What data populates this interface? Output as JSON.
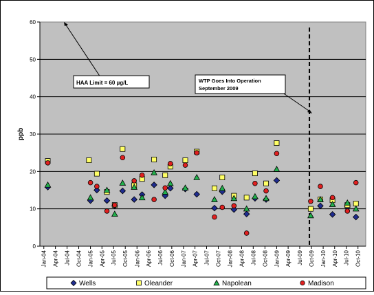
{
  "chart_data": {
    "type": "scatter",
    "ylabel": "ppb",
    "ylim": [
      0,
      60
    ],
    "yticks": [
      0,
      10,
      20,
      30,
      40,
      50,
      60
    ],
    "grid": true,
    "legend_position": "bottom",
    "x_tick_labels": [
      "Jan-04",
      "Apr-04",
      "Jul-04",
      "Oct-04",
      "Jan-05",
      "Apr-05",
      "Jul-05",
      "Oct-05",
      "Jan-06",
      "Apr-06",
      "Jul-06",
      "Oct-06",
      "Jan-07",
      "Apr-07",
      "Jul-07",
      "Oct-07",
      "Jan-08",
      "Apr-08",
      "Jul-08",
      "Oct-08",
      "Jan-09",
      "Apr-09",
      "Jul-09",
      "Oct-09",
      "Jan-10",
      "Apr-10",
      "Jul-10",
      "Oct-10"
    ],
    "annotations": {
      "haa_limit": "HAA Limit = 60 µg/L",
      "wtp_line1": "WTP Goes Into Operation",
      "wtp_line2": "September 2009"
    },
    "wtp_date": "2009-09-15",
    "series": [
      {
        "name": "Wells",
        "marker": "diamond",
        "color": "#1f2c8f",
        "points": [
          [
            "2004-02-01",
            15.8
          ],
          [
            "2005-01-01",
            12.2
          ],
          [
            "2005-02-20",
            15.0
          ],
          [
            "2005-05-10",
            12.2
          ],
          [
            "2005-07-10",
            10.8
          ],
          [
            "2005-09-10",
            14.8
          ],
          [
            "2005-12-10",
            12.5
          ],
          [
            "2006-02-10",
            13.8
          ],
          [
            "2006-05-15",
            16.4
          ],
          [
            "2006-08-10",
            13.5
          ],
          [
            "2006-09-20",
            15.5
          ],
          [
            "2007-01-15",
            15.3
          ],
          [
            "2007-04-15",
            13.9
          ],
          [
            "2007-09-01",
            10.2
          ],
          [
            "2007-11-01",
            14.6
          ],
          [
            "2008-02-01",
            9.8
          ],
          [
            "2008-05-10",
            8.6
          ],
          [
            "2008-07-15",
            12.8
          ],
          [
            "2008-10-10",
            12.5
          ],
          [
            "2009-01-01",
            17.6
          ],
          [
            "2009-12-10",
            10.8
          ],
          [
            "2010-03-15",
            8.5
          ],
          [
            "2010-07-10",
            10.5
          ],
          [
            "2010-09-15",
            7.8
          ]
        ]
      },
      {
        "name": "Oleander",
        "marker": "square",
        "color": "#ffff66",
        "points": [
          [
            "2004-02-01",
            22.8
          ],
          [
            "2004-12-20",
            23.0
          ],
          [
            "2005-02-20",
            19.4
          ],
          [
            "2005-05-10",
            14.5
          ],
          [
            "2005-07-10",
            11.0
          ],
          [
            "2005-09-10",
            26.0
          ],
          [
            "2005-12-10",
            16.3
          ],
          [
            "2006-02-10",
            18.0
          ],
          [
            "2006-05-15",
            23.2
          ],
          [
            "2006-08-10",
            19.0
          ],
          [
            "2006-09-20",
            21.3
          ],
          [
            "2007-01-15",
            23.0
          ],
          [
            "2007-04-15",
            25.3
          ],
          [
            "2007-09-01",
            15.5
          ],
          [
            "2007-11-01",
            18.4
          ],
          [
            "2008-02-01",
            13.5
          ],
          [
            "2008-05-10",
            13.0
          ],
          [
            "2008-07-15",
            19.5
          ],
          [
            "2008-10-10",
            16.8
          ],
          [
            "2009-01-01",
            27.6
          ],
          [
            "2009-09-25",
            10.0
          ],
          [
            "2009-12-10",
            12.5
          ],
          [
            "2010-03-15",
            12.3
          ],
          [
            "2010-07-10",
            11.0
          ],
          [
            "2010-09-15",
            11.4
          ]
        ]
      },
      {
        "name": "Napolean",
        "marker": "triangle",
        "color": "#22b14c",
        "points": [
          [
            "2004-02-01",
            16.4
          ],
          [
            "2005-01-01",
            13.0
          ],
          [
            "2005-05-10",
            15.0
          ],
          [
            "2005-07-10",
            8.6
          ],
          [
            "2005-09-10",
            16.9
          ],
          [
            "2005-12-10",
            15.8
          ],
          [
            "2006-02-10",
            13.0
          ],
          [
            "2006-05-15",
            19.7
          ],
          [
            "2006-08-10",
            14.5
          ],
          [
            "2006-09-20",
            16.8
          ],
          [
            "2007-01-15",
            15.6
          ],
          [
            "2007-04-15",
            18.4
          ],
          [
            "2007-09-01",
            12.5
          ],
          [
            "2007-11-01",
            15.5
          ],
          [
            "2008-02-01",
            12.8
          ],
          [
            "2008-05-10",
            10.0
          ],
          [
            "2008-07-15",
            13.3
          ],
          [
            "2008-10-10",
            12.8
          ],
          [
            "2009-01-01",
            20.6
          ],
          [
            "2009-09-25",
            8.2
          ],
          [
            "2009-12-10",
            12.5
          ],
          [
            "2010-03-15",
            11.2
          ],
          [
            "2010-07-10",
            11.6
          ],
          [
            "2010-09-15",
            10.0
          ]
        ]
      },
      {
        "name": "Madison",
        "marker": "circle",
        "color": "#e02020",
        "points": [
          [
            "2004-02-01",
            22.3
          ],
          [
            "2005-01-01",
            17.0
          ],
          [
            "2005-02-20",
            16.0
          ],
          [
            "2005-05-10",
            9.4
          ],
          [
            "2005-07-10",
            11.0
          ],
          [
            "2005-09-10",
            23.7
          ],
          [
            "2005-12-10",
            17.5
          ],
          [
            "2006-02-10",
            19.0
          ],
          [
            "2006-05-15",
            12.5
          ],
          [
            "2006-08-10",
            15.6
          ],
          [
            "2006-09-20",
            22.1
          ],
          [
            "2007-01-15",
            21.7
          ],
          [
            "2007-04-15",
            25.0
          ],
          [
            "2007-09-01",
            7.8
          ],
          [
            "2007-11-01",
            10.4
          ],
          [
            "2008-02-01",
            10.8
          ],
          [
            "2008-05-10",
            3.5
          ],
          [
            "2008-07-15",
            16.8
          ],
          [
            "2008-10-10",
            14.8
          ],
          [
            "2009-01-01",
            24.8
          ],
          [
            "2009-09-25",
            12.0
          ],
          [
            "2009-12-10",
            16.0
          ],
          [
            "2010-03-15",
            13.0
          ],
          [
            "2010-07-10",
            9.4
          ],
          [
            "2010-09-15",
            17.0
          ]
        ]
      }
    ]
  }
}
